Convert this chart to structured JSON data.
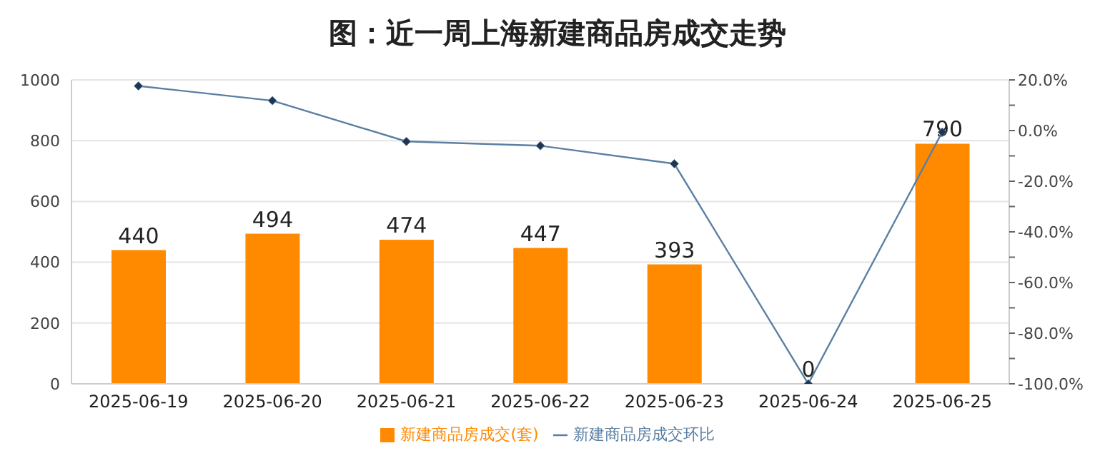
{
  "chart_data": {
    "type": "bar",
    "title": "图：近一周上海新建商品房成交走势",
    "categories": [
      "2025-06-19",
      "2025-06-20",
      "2025-06-21",
      "2025-06-22",
      "2025-06-23",
      "2025-06-24",
      "2025-06-25"
    ],
    "series": [
      {
        "name": "新建商品房成交(套)",
        "color": "#ff8a00",
        "values": [
          440,
          494,
          474,
          447,
          393,
          0,
          790
        ],
        "data_labels": true
      },
      {
        "name": "新建商品房成交环比",
        "type": "line",
        "color": "#5a7fa3",
        "axis": "y2",
        "marker": "diamond",
        "values": [
          17.6,
          11.8,
          -4.3,
          -6.0,
          -13.1,
          -100,
          -0.6
        ]
      }
    ],
    "ylim": [
      0,
      1000
    ],
    "yticks": [
      0,
      200,
      400,
      600,
      800,
      1000
    ],
    "y2lim": [
      -100,
      20
    ],
    "y2ticks": [
      {
        "value": -100,
        "label": "-100.0%"
      },
      {
        "value": -90,
        "label": null
      },
      {
        "value": -80,
        "label": "-80.0%"
      },
      {
        "value": -70,
        "label": null
      },
      {
        "value": -60,
        "label": "-60.0%"
      },
      {
        "value": -50,
        "label": null
      },
      {
        "value": -40,
        "label": "-40.0%"
      },
      {
        "value": -30,
        "label": null
      },
      {
        "value": -20,
        "label": "-20.0%"
      },
      {
        "value": -10,
        "label": null
      },
      {
        "value": 0,
        "label": "0.0%"
      },
      {
        "value": 10,
        "label": null
      },
      {
        "value": 20,
        "label": "20.0%"
      }
    ],
    "grid": "y",
    "legend": "bottom"
  }
}
